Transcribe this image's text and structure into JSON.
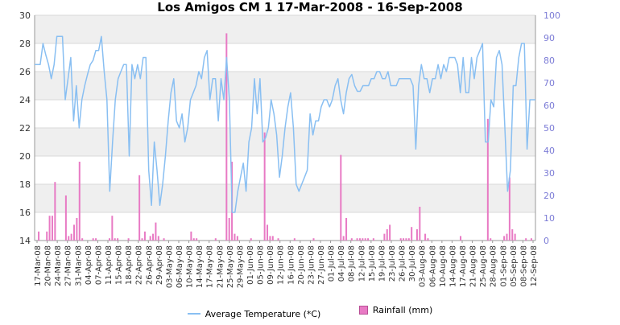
{
  "chart_data": {
    "type": "line+bar",
    "title": "Los Amigos CM 1  17-Mar-2008 - 16-Sep-2008",
    "y_left": {
      "min": 14,
      "max": 30,
      "step": 2,
      "ticks": [
        "14",
        "16",
        "18",
        "20",
        "22",
        "24",
        "26",
        "28",
        "30"
      ]
    },
    "y_right": {
      "min": 0,
      "max": 100,
      "step": 10,
      "ticks": [
        "0",
        "10",
        "20",
        "30",
        "40",
        "50",
        "60",
        "70",
        "80",
        "90",
        "100"
      ]
    },
    "x_tick_labels": [
      "17-Mar-08",
      "20-Mar-08",
      "24-Mar-08",
      "27-Mar-08",
      "31-Mar-08",
      "04-Apr-08",
      "07-Apr-08",
      "11-Apr-08",
      "15-Apr-08",
      "18-Apr-08",
      "22-Apr-08",
      "26-Apr-08",
      "29-Apr-08",
      "03-May-08",
      "06-May-08",
      "10-May-08",
      "14-May-08",
      "17-May-08",
      "21-May-08",
      "25-May-08",
      "29-May-08",
      "01-Jun-08",
      "05-Jun-08",
      "09-Jun-08",
      "12-Jun-08",
      "16-Jun-08",
      "20-Jun-08",
      "23-Jun-08",
      "27-Jun-08",
      "01-Jul-08",
      "04-Jul-08",
      "08-Jul-08",
      "12-Jul-08",
      "15-Jul-08",
      "19-Jul-08",
      "23-Jul-08",
      "26-Jul-08",
      "30-Jul-08",
      "03-Aug-08",
      "06-Aug-08",
      "10-Aug-08",
      "14-Aug-08",
      "17-Aug-08",
      "21-Aug-08",
      "25-Aug-08",
      "28-Aug-08",
      "01-Sep-08",
      "05-Sep-08",
      "08-Sep-08",
      "12-Sep-08"
    ],
    "series": [
      {
        "name": "Average Temperature (*C)",
        "type": "line",
        "axis": "left",
        "color": "#89bff2",
        "values": [
          26.5,
          26.5,
          26.5,
          28,
          27.2,
          26.5,
          25.5,
          26.5,
          28.5,
          28.5,
          28.5,
          24,
          25.5,
          27,
          22.5,
          25,
          22,
          24,
          25,
          25.8,
          26.5,
          26.8,
          27.5,
          27.5,
          28.5,
          26,
          24,
          17.5,
          21,
          24,
          25.5,
          26,
          26.5,
          26.5,
          20,
          26.5,
          25.5,
          26.5,
          25.5,
          27,
          27,
          19,
          16.5,
          21,
          19,
          16.5,
          18,
          20,
          22.5,
          24.5,
          25.5,
          22.5,
          22,
          23,
          21,
          22,
          24,
          24.5,
          25,
          26,
          25.5,
          27,
          27.5,
          24,
          25.5,
          25.5,
          22.5,
          25.5,
          24,
          27,
          24,
          16,
          16,
          17.5,
          18.5,
          19.5,
          17.5,
          21,
          22,
          25.5,
          23,
          25.5,
          21,
          21.3,
          22,
          24,
          23,
          21.5,
          18.5,
          20,
          22,
          23.5,
          24.5,
          22,
          18,
          17.5,
          18,
          18.5,
          19,
          23,
          21.5,
          22.5,
          22.5,
          23.5,
          24,
          24,
          23.5,
          24,
          25,
          25.5,
          24,
          23,
          24.5,
          25.5,
          25.8,
          25,
          24.6,
          24.6,
          25,
          25,
          25,
          25.5,
          25.5,
          26,
          26,
          25.5,
          25.5,
          26,
          25,
          25,
          25,
          25.5,
          25.5,
          25.5,
          25.5,
          25.5,
          25,
          20.5,
          25,
          26.5,
          25.5,
          25.5,
          24.5,
          25.5,
          25.5,
          26.5,
          25.5,
          26.5,
          26,
          27,
          27,
          27,
          26.5,
          24.5,
          27,
          24.5,
          24.5,
          27,
          25.5,
          27,
          27.5,
          28,
          21,
          21,
          24,
          23.5,
          27,
          27.5,
          26.5,
          22,
          17.5,
          19,
          25,
          25,
          27,
          28,
          28,
          20.5,
          24,
          24,
          24
        ]
      },
      {
        "name": "Rainfall (mm)",
        "type": "bar",
        "axis": "right",
        "color": "#e87ac4",
        "values": [
          0,
          4,
          0,
          0,
          4,
          11,
          11,
          26,
          0,
          0,
          0,
          20,
          2,
          3,
          7,
          10,
          35,
          1,
          0,
          0,
          0,
          1,
          1,
          0,
          0,
          0,
          0,
          1,
          11,
          1,
          1,
          0,
          0,
          0,
          1,
          0,
          0,
          0,
          29,
          1,
          4,
          0,
          2,
          3,
          8,
          2,
          0,
          1,
          0,
          0,
          0,
          0,
          0,
          0,
          0,
          0,
          0,
          4,
          1,
          1,
          0,
          0,
          0,
          0,
          0,
          0,
          1,
          0,
          0,
          0,
          92,
          10,
          35,
          3,
          2,
          0,
          0,
          0,
          0,
          1,
          0,
          0,
          0,
          0,
          48,
          7,
          2,
          2,
          0,
          1,
          0,
          0,
          0,
          0,
          0,
          1,
          0,
          0,
          0,
          0,
          0,
          0,
          1,
          0,
          0,
          0,
          0,
          0,
          0,
          0,
          0,
          0,
          38,
          2,
          10,
          0,
          1,
          0,
          1,
          1,
          1,
          1,
          1,
          0,
          1,
          0,
          0,
          0,
          3,
          5,
          7,
          0,
          0,
          0,
          1,
          1,
          1,
          1,
          6,
          0,
          5,
          15,
          0,
          3,
          1,
          0,
          0,
          0,
          0,
          0,
          0,
          0,
          0,
          0,
          0,
          0,
          2,
          0,
          0,
          0,
          0,
          0,
          0,
          0,
          0,
          0,
          54,
          1,
          0,
          0,
          0,
          0,
          2,
          3,
          28,
          5,
          3,
          0,
          0,
          0,
          1,
          0,
          1,
          0
        ]
      }
    ],
    "legend": [
      "Average Temperature (*C)",
      "Rainfall (mm)"
    ],
    "legend_position": "bottom",
    "grid": true
  }
}
